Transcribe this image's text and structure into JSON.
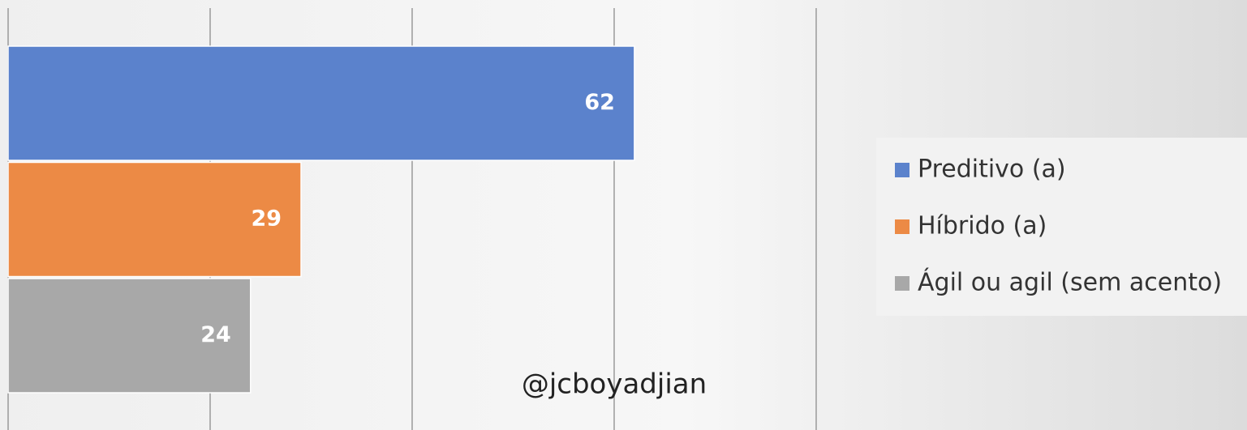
{
  "chart_data": {
    "type": "bar",
    "orientation": "horizontal",
    "categories": [
      null
    ],
    "series": [
      {
        "name": "Preditivo (a)",
        "color": "#5b82cc",
        "values": [
          62
        ]
      },
      {
        "name": "Híbrido (a)",
        "color": "#ec8a45",
        "values": [
          29
        ]
      },
      {
        "name": "Ágil ou agil (sem acento)",
        "color": "#a8a8a8",
        "values": [
          24
        ]
      }
    ],
    "xlim": [
      0,
      80
    ],
    "xticks": [
      0,
      20,
      40,
      60,
      80
    ],
    "grid": true,
    "legend": "right",
    "annotations": [
      "@jcboyadjian"
    ]
  }
}
